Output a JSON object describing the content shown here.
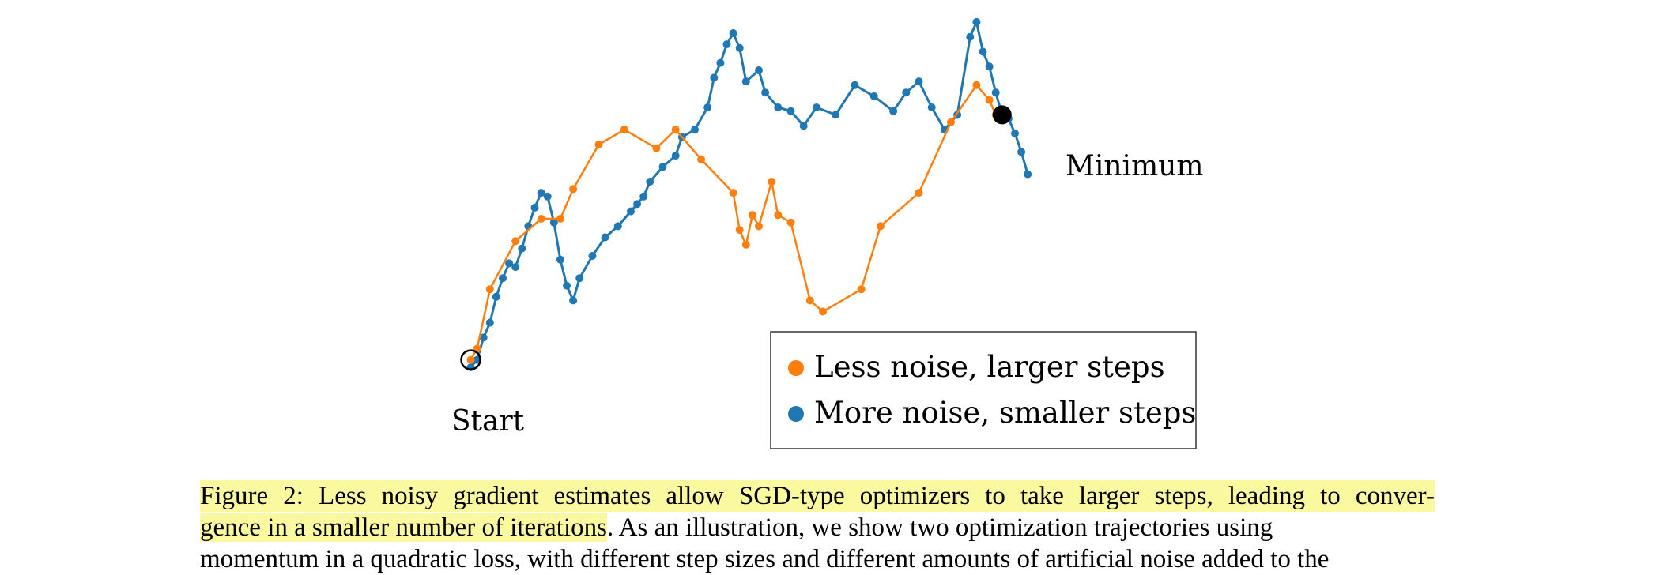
{
  "figure": {
    "labels": {
      "start": "Start",
      "minimum": "Minimum"
    },
    "legend": {
      "items": [
        {
          "label": "Less noise, larger steps",
          "color": "#ff7f0e"
        },
        {
          "label": "More noise, smaller steps",
          "color": "#1f77b4"
        }
      ]
    }
  },
  "chart_data": {
    "type": "line",
    "title": "",
    "xlabel": "",
    "ylabel": "",
    "grid": false,
    "axes_visible": false,
    "legend_position": "lower-right",
    "xlim": [
      0,
      1
    ],
    "ylim": [
      0,
      1
    ],
    "start": [
      0.05,
      0.12
    ],
    "minimum": [
      0.88,
      0.78
    ],
    "series": [
      {
        "name": "Less noise, larger steps",
        "color": "#ff7f0e",
        "x": [
          0.05,
          0.06,
          0.08,
          0.12,
          0.16,
          0.19,
          0.21,
          0.25,
          0.29,
          0.34,
          0.37,
          0.41,
          0.46,
          0.47,
          0.48,
          0.49,
          0.5,
          0.52,
          0.53,
          0.55,
          0.58,
          0.6,
          0.66,
          0.69,
          0.75,
          0.8,
          0.84,
          0.86,
          0.87,
          0.88
        ],
        "y": [
          0.12,
          0.15,
          0.31,
          0.44,
          0.5,
          0.5,
          0.58,
          0.7,
          0.74,
          0.69,
          0.74,
          0.66,
          0.57,
          0.47,
          0.43,
          0.51,
          0.48,
          0.6,
          0.51,
          0.49,
          0.28,
          0.25,
          0.31,
          0.48,
          0.57,
          0.76,
          0.86,
          0.82,
          0.78,
          0.78
        ]
      },
      {
        "name": "More noise, smaller steps",
        "color": "#1f77b4",
        "x": [
          0.05,
          0.06,
          0.07,
          0.08,
          0.09,
          0.1,
          0.11,
          0.12,
          0.13,
          0.14,
          0.15,
          0.16,
          0.17,
          0.18,
          0.19,
          0.2,
          0.21,
          0.22,
          0.24,
          0.26,
          0.28,
          0.3,
          0.31,
          0.32,
          0.33,
          0.35,
          0.37,
          0.38,
          0.4,
          0.42,
          0.43,
          0.44,
          0.45,
          0.46,
          0.47,
          0.48,
          0.5,
          0.51,
          0.53,
          0.55,
          0.57,
          0.59,
          0.62,
          0.65,
          0.68,
          0.71,
          0.73,
          0.75,
          0.77,
          0.79,
          0.81,
          0.83,
          0.84,
          0.85,
          0.86,
          0.87,
          0.88,
          0.89,
          0.9,
          0.91,
          0.92
        ],
        "y": [
          0.1,
          0.12,
          0.18,
          0.22,
          0.29,
          0.34,
          0.38,
          0.37,
          0.42,
          0.48,
          0.53,
          0.57,
          0.56,
          0.49,
          0.39,
          0.32,
          0.28,
          0.34,
          0.4,
          0.45,
          0.48,
          0.52,
          0.54,
          0.56,
          0.6,
          0.64,
          0.67,
          0.72,
          0.74,
          0.8,
          0.88,
          0.92,
          0.97,
          1.0,
          0.96,
          0.87,
          0.9,
          0.84,
          0.8,
          0.79,
          0.75,
          0.8,
          0.78,
          0.86,
          0.83,
          0.79,
          0.84,
          0.87,
          0.8,
          0.74,
          0.78,
          0.99,
          1.03,
          0.95,
          0.91,
          0.84,
          0.78,
          0.77,
          0.73,
          0.68,
          0.62
        ]
      }
    ]
  },
  "caption": {
    "line1": "Figure 2: Less noisy gradient estimates allow SGD-type optimizers to take larger steps, leading to conver-",
    "line2_highlight": "gence in a smaller number of iterations",
    "line2_rest": ".  As an illustration, we show two optimization trajectories using",
    "line3": "momentum in a quadratic loss, with different step sizes and different amounts of artificial noise added to the"
  }
}
